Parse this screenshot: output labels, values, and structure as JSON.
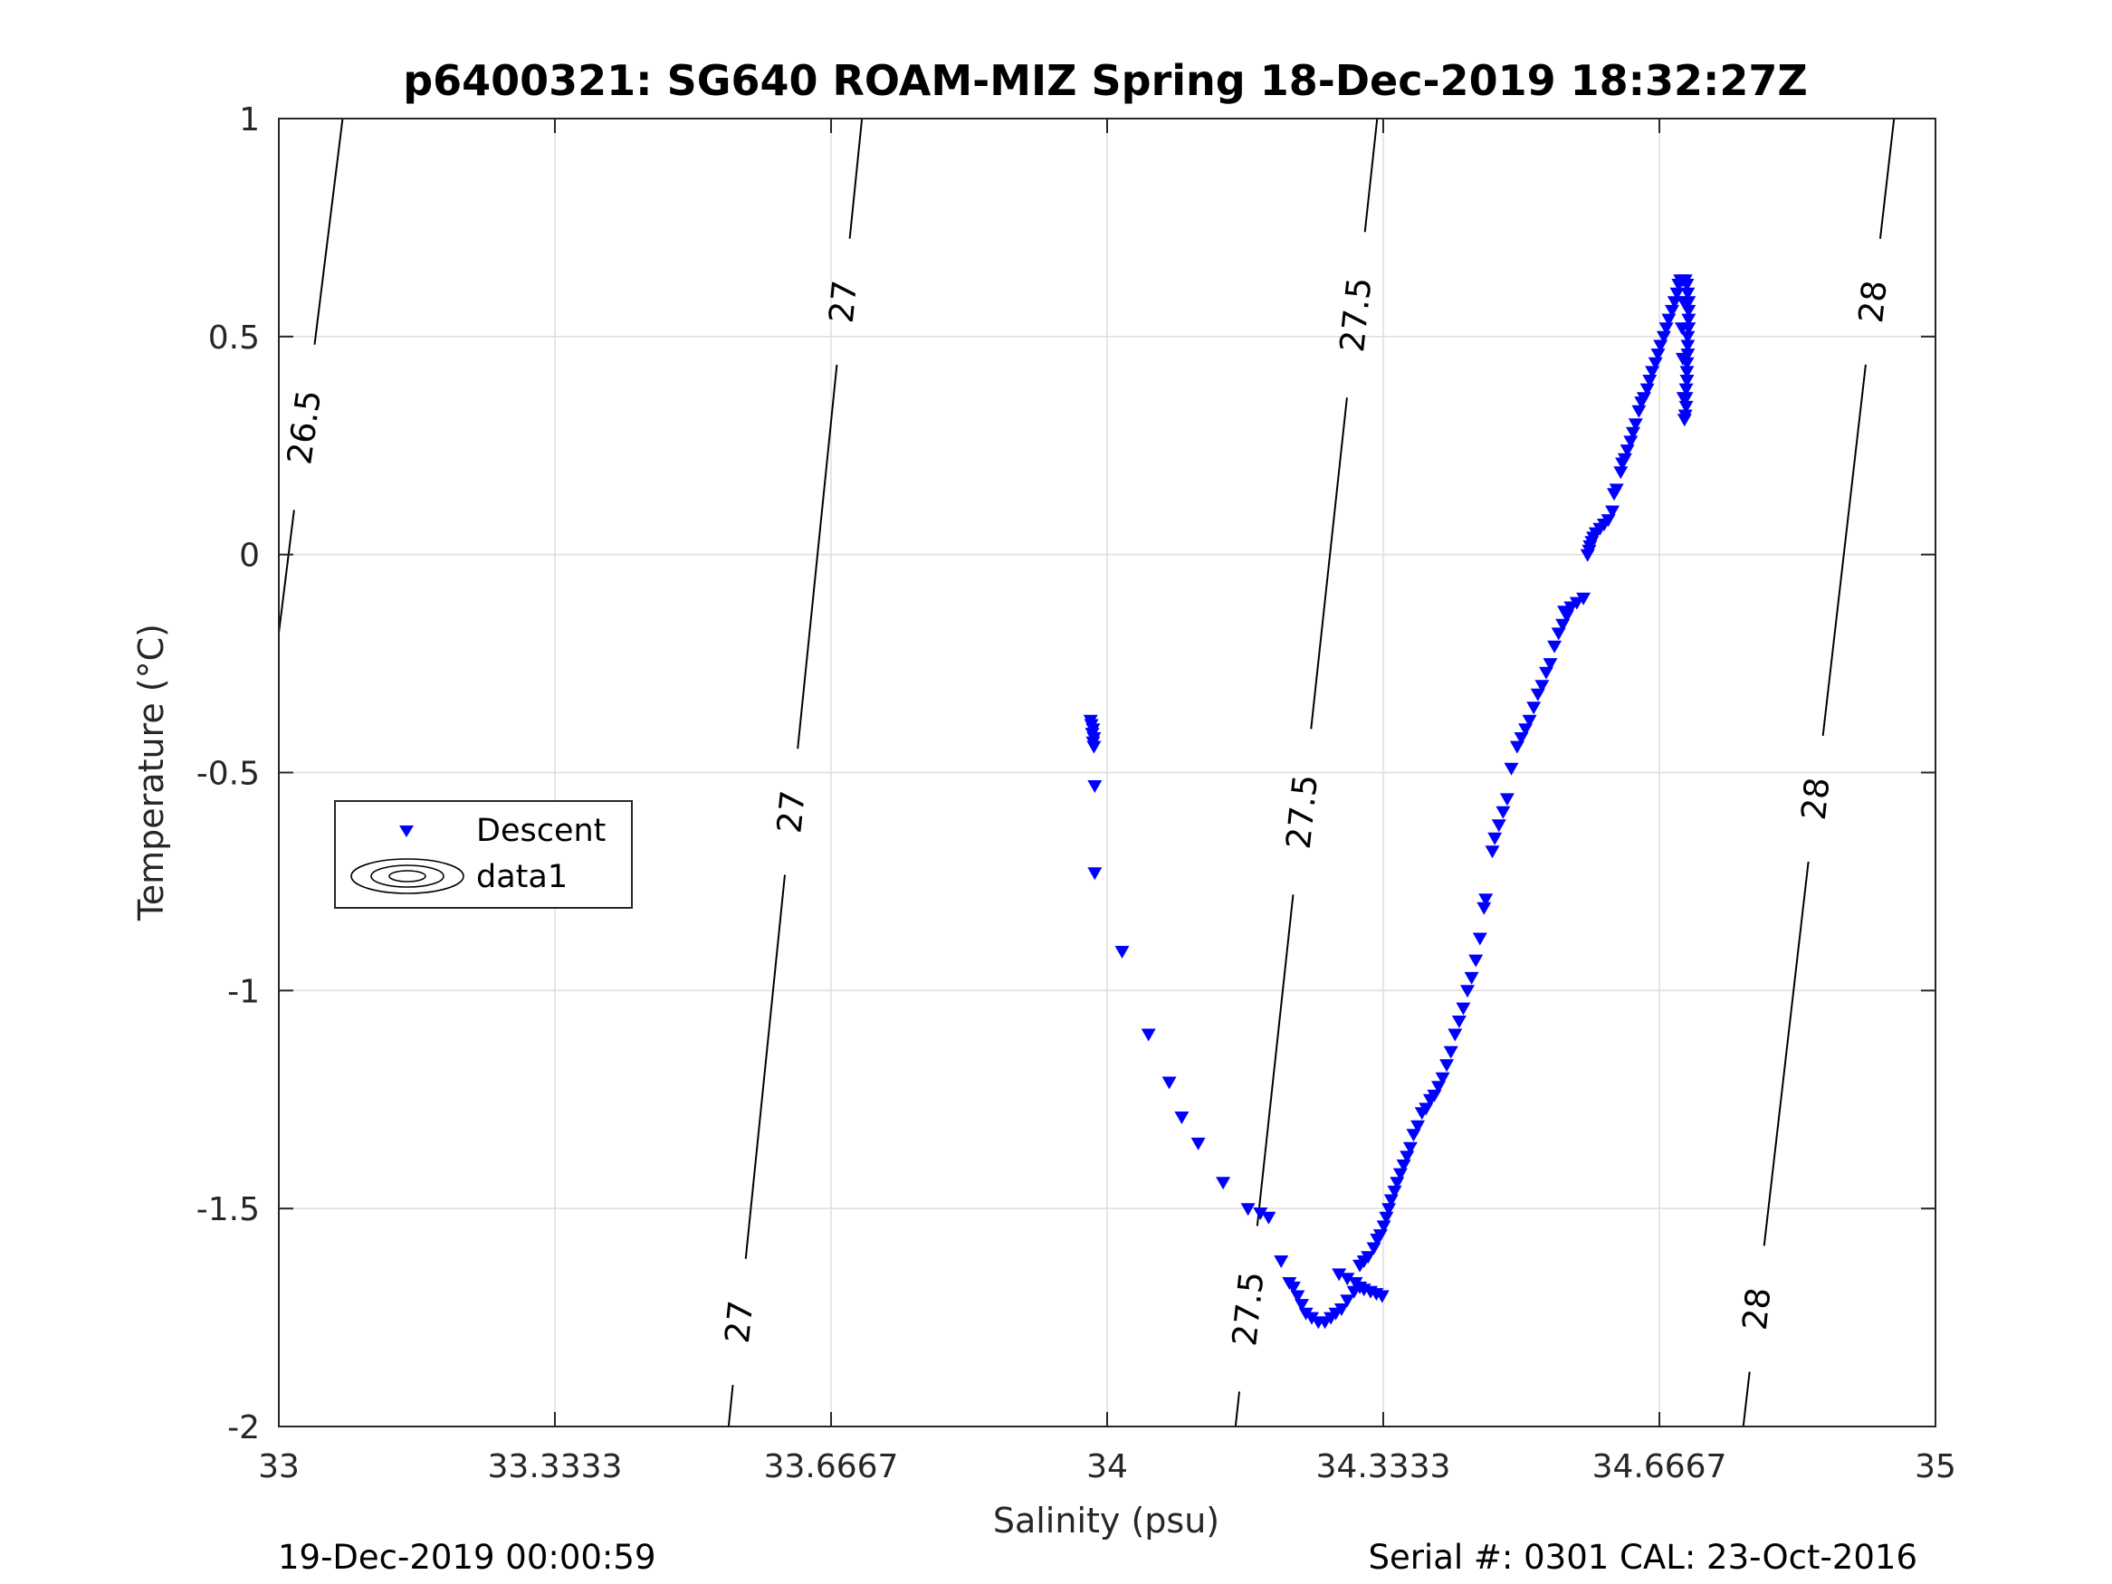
{
  "chart_data": {
    "type": "scatter",
    "title": "p6400321: SG640 ROAM-MIZ Spring 18-Dec-2019 18:32:27Z",
    "xlabel": "Salinity (psu)",
    "ylabel": "Temperature (°C)",
    "xlim": [
      33,
      35
    ],
    "ylim": [
      -2,
      1
    ],
    "x_ticks": [
      33,
      33.3333,
      33.6667,
      34,
      34.3333,
      34.6667,
      35
    ],
    "x_tick_labels": [
      "33",
      "33.3333",
      "33.6667",
      "34",
      "34.3333",
      "34.6667",
      "35"
    ],
    "y_ticks": [
      -2,
      -1.5,
      -1,
      -0.5,
      0,
      0.5,
      1
    ],
    "y_tick_labels": [
      "-2",
      "-1.5",
      "-1",
      "-0.5",
      "0",
      "0.5",
      "1"
    ],
    "grid": true,
    "legend_position": "left",
    "legend": [
      "Descent",
      "data1"
    ],
    "colors": {
      "descent": "#0000ff",
      "contour": "#000000",
      "grid": "#dedede"
    },
    "series": [
      {
        "name": "Descent",
        "marker": "triangle-down",
        "points": [
          [
            33.98,
            -0.38
          ],
          [
            33.981,
            -0.39
          ],
          [
            33.983,
            -0.4
          ],
          [
            33.982,
            -0.41
          ],
          [
            33.984,
            -0.42
          ],
          [
            33.983,
            -0.43
          ],
          [
            33.984,
            -0.44
          ],
          [
            33.985,
            -0.53
          ],
          [
            33.985,
            -0.73
          ],
          [
            34.018,
            -0.91
          ],
          [
            34.05,
            -1.1
          ],
          [
            34.075,
            -1.21
          ],
          [
            34.09,
            -1.29
          ],
          [
            34.11,
            -1.35
          ],
          [
            34.14,
            -1.44
          ],
          [
            34.17,
            -1.5
          ],
          [
            34.185,
            -1.51
          ],
          [
            34.195,
            -1.52
          ],
          [
            34.21,
            -1.62
          ],
          [
            34.22,
            -1.67
          ],
          [
            34.225,
            -1.68
          ],
          [
            34.23,
            -1.7
          ],
          [
            34.235,
            -1.72
          ],
          [
            34.24,
            -1.74
          ],
          [
            34.247,
            -1.75
          ],
          [
            34.255,
            -1.76
          ],
          [
            34.263,
            -1.76
          ],
          [
            34.27,
            -1.75
          ],
          [
            34.276,
            -1.74
          ],
          [
            34.283,
            -1.73
          ],
          [
            34.29,
            -1.71
          ],
          [
            34.298,
            -1.69
          ],
          [
            34.305,
            -1.68
          ],
          [
            34.31,
            -1.685
          ],
          [
            34.318,
            -1.69
          ],
          [
            34.325,
            -1.695
          ],
          [
            34.332,
            -1.7
          ],
          [
            34.28,
            -1.65
          ],
          [
            34.29,
            -1.66
          ],
          [
            34.3,
            -1.67
          ],
          [
            34.305,
            -1.63
          ],
          [
            34.31,
            -1.62
          ],
          [
            34.315,
            -1.61
          ],
          [
            34.322,
            -1.59
          ],
          [
            34.326,
            -1.57
          ],
          [
            34.33,
            -1.56
          ],
          [
            34.334,
            -1.54
          ],
          [
            34.337,
            -1.52
          ],
          [
            34.34,
            -1.5
          ],
          [
            34.343,
            -1.48
          ],
          [
            34.347,
            -1.46
          ],
          [
            34.35,
            -1.44
          ],
          [
            34.354,
            -1.42
          ],
          [
            34.358,
            -1.4
          ],
          [
            34.362,
            -1.38
          ],
          [
            34.366,
            -1.36
          ],
          [
            34.37,
            -1.33
          ],
          [
            34.375,
            -1.31
          ],
          [
            34.38,
            -1.28
          ],
          [
            34.385,
            -1.27
          ],
          [
            34.39,
            -1.25
          ],
          [
            34.395,
            -1.24
          ],
          [
            34.4,
            -1.22
          ],
          [
            34.405,
            -1.2
          ],
          [
            34.41,
            -1.17
          ],
          [
            34.415,
            -1.14
          ],
          [
            34.42,
            -1.1
          ],
          [
            34.425,
            -1.07
          ],
          [
            34.43,
            -1.04
          ],
          [
            34.435,
            -1.0
          ],
          [
            34.44,
            -0.97
          ],
          [
            34.445,
            -0.93
          ],
          [
            34.45,
            -0.88
          ],
          [
            34.455,
            -0.81
          ],
          [
            34.457,
            -0.79
          ],
          [
            34.465,
            -0.68
          ],
          [
            34.468,
            -0.65
          ],
          [
            34.473,
            -0.62
          ],
          [
            34.478,
            -0.59
          ],
          [
            34.483,
            -0.56
          ],
          [
            34.488,
            -0.49
          ],
          [
            34.495,
            -0.44
          ],
          [
            34.5,
            -0.42
          ],
          [
            34.505,
            -0.4
          ],
          [
            34.51,
            -0.38
          ],
          [
            34.515,
            -0.35
          ],
          [
            34.52,
            -0.32
          ],
          [
            34.525,
            -0.3
          ],
          [
            34.53,
            -0.27
          ],
          [
            34.535,
            -0.25
          ],
          [
            34.54,
            -0.21
          ],
          [
            34.545,
            -0.18
          ],
          [
            34.55,
            -0.16
          ],
          [
            34.552,
            -0.13
          ],
          [
            34.555,
            -0.14
          ],
          [
            34.56,
            -0.12
          ],
          [
            34.567,
            -0.11
          ],
          [
            34.575,
            -0.1
          ],
          [
            34.58,
            0.0
          ],
          [
            34.582,
            0.01
          ],
          [
            34.583,
            0.02
          ],
          [
            34.585,
            0.03
          ],
          [
            34.587,
            0.04
          ],
          [
            34.59,
            0.05
          ],
          [
            34.595,
            0.06
          ],
          [
            34.6,
            0.07
          ],
          [
            34.605,
            0.08
          ],
          [
            34.61,
            0.1
          ],
          [
            34.612,
            0.14
          ],
          [
            34.62,
            0.19
          ],
          [
            34.615,
            0.15
          ],
          [
            34.622,
            0.21
          ],
          [
            34.625,
            0.22
          ],
          [
            34.628,
            0.24
          ],
          [
            34.632,
            0.26
          ],
          [
            34.635,
            0.28
          ],
          [
            34.638,
            0.3
          ],
          [
            34.642,
            0.33
          ],
          [
            34.645,
            0.35
          ],
          [
            34.648,
            0.36
          ],
          [
            34.652,
            0.38
          ],
          [
            34.655,
            0.4
          ],
          [
            34.658,
            0.42
          ],
          [
            34.662,
            0.44
          ],
          [
            34.665,
            0.46
          ],
          [
            34.668,
            0.48
          ],
          [
            34.672,
            0.5
          ],
          [
            34.675,
            0.52
          ],
          [
            34.678,
            0.54
          ],
          [
            34.682,
            0.56
          ],
          [
            34.685,
            0.58
          ],
          [
            34.688,
            0.6
          ],
          [
            34.69,
            0.62
          ],
          [
            34.692,
            0.63
          ],
          [
            34.695,
            0.63
          ],
          [
            34.698,
            0.63
          ],
          [
            34.7,
            0.62
          ],
          [
            34.701,
            0.6
          ],
          [
            34.702,
            0.58
          ],
          [
            34.702,
            0.56
          ],
          [
            34.702,
            0.54
          ],
          [
            34.702,
            0.52
          ],
          [
            34.701,
            0.5
          ],
          [
            34.701,
            0.48
          ],
          [
            34.701,
            0.46
          ],
          [
            34.7,
            0.44
          ],
          [
            34.7,
            0.42
          ],
          [
            34.7,
            0.4
          ],
          [
            34.699,
            0.38
          ],
          [
            34.699,
            0.36
          ],
          [
            34.699,
            0.34
          ],
          [
            34.698,
            0.32
          ],
          [
            34.697,
            0.31
          ],
          [
            34.696,
            0.36
          ],
          [
            34.695,
            0.45
          ],
          [
            34.694,
            0.52
          ],
          [
            34.696,
            0.58
          ]
        ]
      },
      {
        "name": "data1",
        "marker": "contour",
        "isopycnals": [
          {
            "label": "26.5",
            "from": [
              33.0,
              -0.18
            ],
            "to": [
              33.077,
              1.0
            ],
            "label_at": [
              0.4
            ],
            "label_angle": -82
          },
          {
            "label": "27",
            "from": [
              33.543,
              -2.0
            ],
            "to": [
              33.704,
              1.0
            ],
            "label_at": [
              0.08,
              0.47,
              0.86
            ],
            "label_angle": -84
          },
          {
            "label": "27.5",
            "from": [
              34.155,
              -2.0
            ],
            "to": [
              34.326,
              1.0
            ],
            "label_at": [
              0.09,
              0.47,
              0.85
            ],
            "label_angle": -84
          },
          {
            "label": "28",
            "from": [
              34.768,
              -2.0
            ],
            "to": [
              34.95,
              1.0
            ],
            "label_at": [
              0.09,
              0.48,
              0.86
            ],
            "label_angle": -84
          }
        ]
      }
    ]
  },
  "footer": {
    "left": "19-Dec-2019 00:00:59",
    "right": "Serial #: 0301  CAL: 23-Oct-2016"
  }
}
